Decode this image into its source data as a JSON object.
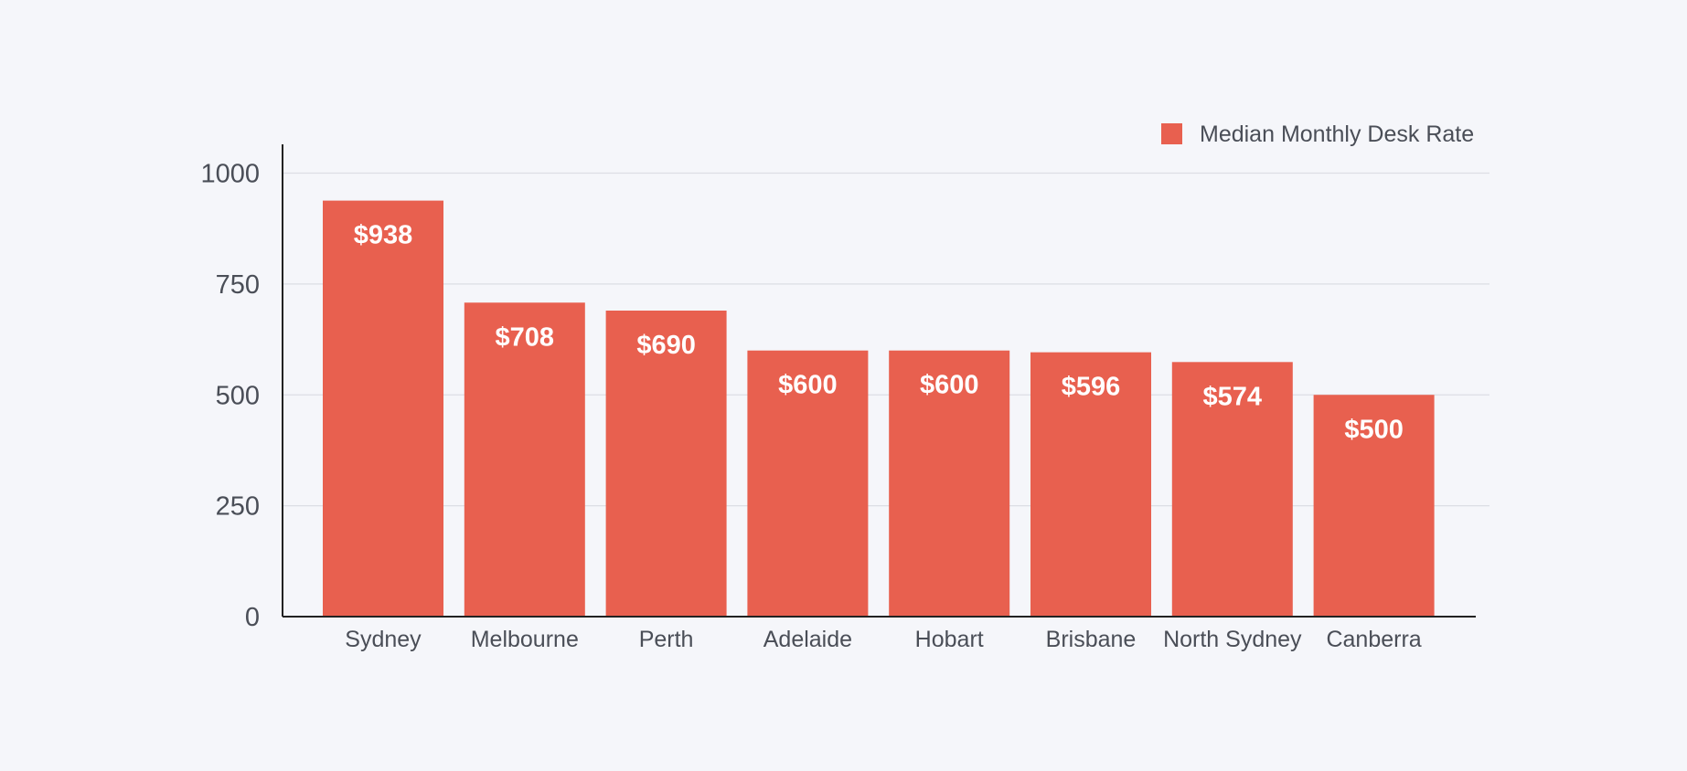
{
  "chart_data": {
    "type": "bar",
    "categories": [
      "Sydney",
      "Melbourne",
      "Perth",
      "Adelaide",
      "Hobart",
      "Brisbane",
      "North Sydney",
      "Canberra"
    ],
    "series": [
      {
        "name": "Median Monthly Desk Rate",
        "values": [
          938,
          708,
          690,
          600,
          600,
          596,
          574,
          500
        ],
        "labels": [
          "$938",
          "$708",
          "$690",
          "$600",
          "$600",
          "$596",
          "$574",
          "$500"
        ],
        "color": "#e8604f"
      }
    ],
    "yticks": [
      "0",
      "250",
      "500",
      "750",
      "1000"
    ],
    "ylim": [
      0,
      1060
    ],
    "grid": true,
    "legend_position": "top-right",
    "colors": {
      "background": "#f5f6fa",
      "bar": "#e8604f",
      "grid": "#dcdee4",
      "axis": "#222222",
      "text": "#4a4e57",
      "bar_label": "#ffffff"
    }
  }
}
